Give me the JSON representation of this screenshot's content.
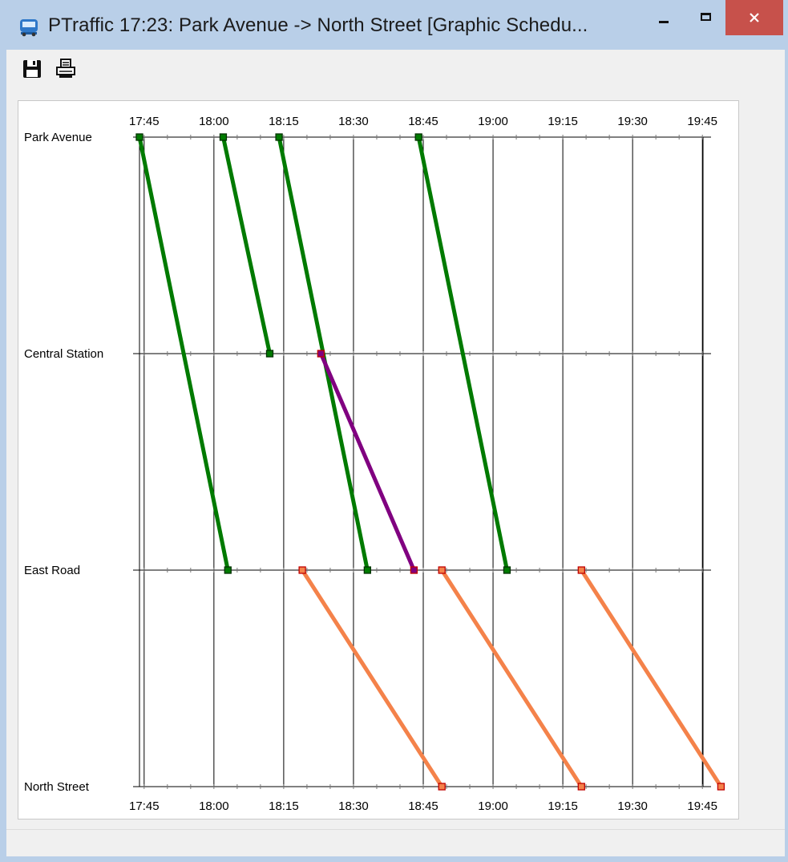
{
  "window": {
    "app_name": "PTraffic",
    "title": "PTraffic  17:23: Park Avenue -> North Street  [Graphic Schedu...",
    "minimize_glyph": "–",
    "maximize_glyph": "□",
    "close_glyph": "✕",
    "accent": "#b9cfe8",
    "close_color": "#c7514b"
  },
  "toolbar": {
    "save_icon": "save-icon",
    "print_icon": "print-icon"
  },
  "chart_data": {
    "type": "line",
    "stations": [
      "Park Avenue",
      "Central Station",
      "East Road",
      "North Street"
    ],
    "time_ticks": [
      "17:45",
      "18:00",
      "18:15",
      "18:30",
      "18:45",
      "19:00",
      "19:15",
      "19:30",
      "19:45"
    ],
    "xlim": [
      "17:44",
      "19:46"
    ],
    "grid": true,
    "series": [
      {
        "color": "#007a00",
        "points": [
          [
            "17:44",
            "Park Avenue"
          ],
          [
            "18:03",
            "East Road"
          ]
        ]
      },
      {
        "color": "#007a00",
        "points": [
          [
            "18:02",
            "Park Avenue"
          ],
          [
            "18:12",
            "Central Station"
          ]
        ]
      },
      {
        "color": "#007a00",
        "points": [
          [
            "18:14",
            "Park Avenue"
          ],
          [
            "18:33",
            "East Road"
          ]
        ]
      },
      {
        "color": "#800080",
        "points": [
          [
            "18:23",
            "Central Station"
          ],
          [
            "18:43",
            "East Road"
          ]
        ]
      },
      {
        "color": "#007a00",
        "points": [
          [
            "18:44",
            "Park Avenue"
          ],
          [
            "19:03",
            "East Road"
          ]
        ]
      },
      {
        "color": "#f4824a",
        "points": [
          [
            "18:19",
            "East Road"
          ],
          [
            "18:49",
            "North Street"
          ]
        ]
      },
      {
        "color": "#f4824a",
        "points": [
          [
            "18:49",
            "East Road"
          ],
          [
            "19:19",
            "North Street"
          ]
        ]
      },
      {
        "color": "#f4824a",
        "points": [
          [
            "19:19",
            "East Road"
          ],
          [
            "19:49",
            "North Street"
          ]
        ]
      }
    ]
  }
}
